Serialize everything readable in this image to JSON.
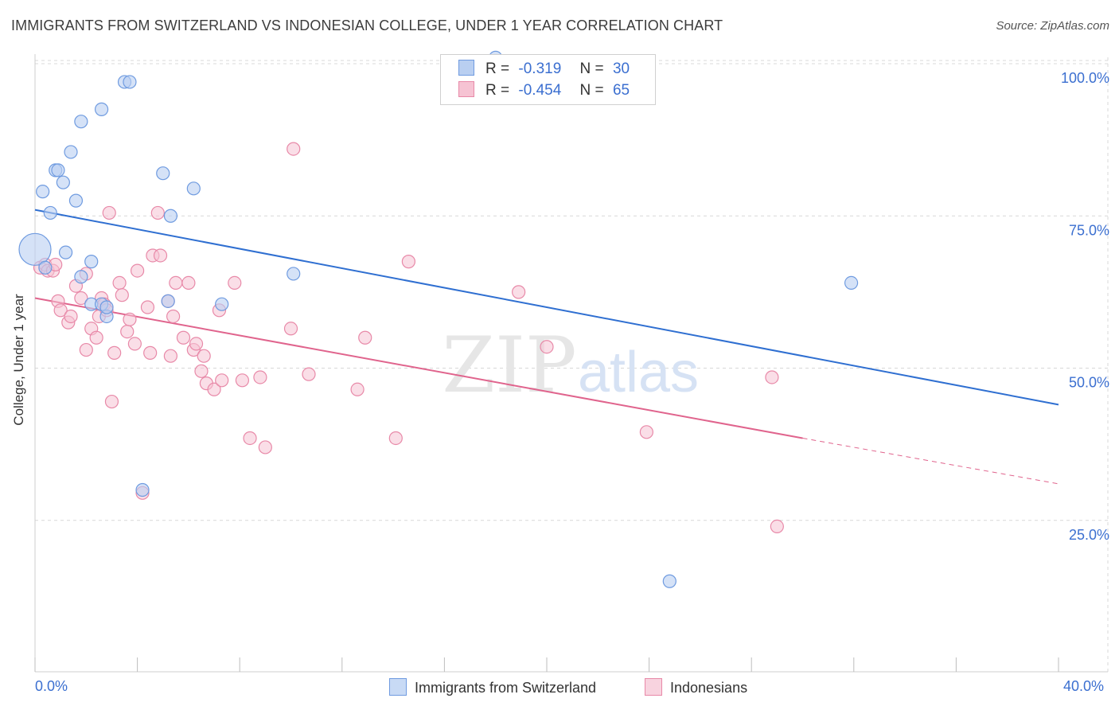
{
  "header": {
    "title": "IMMIGRANTS FROM SWITZERLAND VS INDONESIAN COLLEGE, UNDER 1 YEAR CORRELATION CHART",
    "source": "Source: ZipAtlas.com"
  },
  "stats_legend": {
    "rows": [
      {
        "r_label": "R =",
        "r_value": "-0.319",
        "n_label": "N =",
        "n_value": "30"
      },
      {
        "r_label": "R =",
        "r_value": "-0.454",
        "n_label": "N =",
        "n_value": "65"
      }
    ]
  },
  "watermark": {
    "zip": "ZIP",
    "atlas": "atlas"
  },
  "colors": {
    "blue_fill": "#b9cff1",
    "blue_stroke": "#6f9be0",
    "blue_line": "#2f6fd1",
    "pink_fill": "#f6c3d3",
    "pink_stroke": "#e889a8",
    "pink_line": "#e0648d",
    "grid": "#d8d8d8",
    "tick_text": "#3b6fd0"
  },
  "chart_data": {
    "type": "scatter",
    "title": "IMMIGRANTS FROM SWITZERLAND VS INDONESIAN COLLEGE, UNDER 1 YEAR CORRELATION CHART",
    "xlabel": "",
    "ylabel": "College, Under 1 year",
    "xlim": [
      0,
      40
    ],
    "ylim": [
      0,
      102
    ],
    "x_tick_labels": [
      "0.0%",
      "40.0%"
    ],
    "y_ticks": [
      25,
      50,
      75,
      100
    ],
    "y_tick_labels": [
      "25.0%",
      "50.0%",
      "75.0%",
      "100.0%"
    ],
    "grid": true,
    "series": [
      {
        "name": "Immigrants from Switzerland",
        "color": "#6f9be0",
        "r": -0.319,
        "n": 30,
        "trend": {
          "x0": 0,
          "y0": 76,
          "x1": 40,
          "y1": 44
        },
        "points": [
          [
            0.0,
            69.5,
            "large"
          ],
          [
            0.3,
            79.0
          ],
          [
            0.6,
            75.5
          ],
          [
            0.8,
            82.5
          ],
          [
            0.9,
            82.5
          ],
          [
            1.1,
            80.5
          ],
          [
            1.2,
            69.0
          ],
          [
            1.4,
            85.5
          ],
          [
            1.6,
            77.5
          ],
          [
            1.8,
            65.0
          ],
          [
            1.8,
            90.5
          ],
          [
            2.2,
            67.5
          ],
          [
            2.2,
            60.5
          ],
          [
            2.6,
            60.5
          ],
          [
            2.6,
            92.5
          ],
          [
            2.8,
            58.5
          ],
          [
            3.5,
            97.0
          ],
          [
            3.7,
            97.0
          ],
          [
            4.2,
            30.0
          ],
          [
            5.0,
            82.0
          ],
          [
            5.2,
            61.0
          ],
          [
            5.3,
            75.0
          ],
          [
            6.2,
            79.5
          ],
          [
            7.3,
            60.5
          ],
          [
            10.1,
            65.5
          ],
          [
            18.0,
            101.0
          ],
          [
            24.8,
            15.0
          ],
          [
            31.9,
            64.0
          ],
          [
            0.4,
            66.5
          ],
          [
            2.8,
            60.0
          ]
        ]
      },
      {
        "name": "Indonesians",
        "color": "#e889a8",
        "r": -0.454,
        "n": 65,
        "trend": {
          "x0": 0,
          "y0": 61.5,
          "x1": 30,
          "y1": 38.5
        },
        "trend_extension": {
          "x0": 30,
          "y0": 38.5,
          "x1": 40,
          "y1": 31
        },
        "points": [
          [
            0.2,
            66.5
          ],
          [
            0.4,
            67.0
          ],
          [
            0.5,
            66.0
          ],
          [
            0.7,
            66.0
          ],
          [
            0.8,
            67.0
          ],
          [
            0.9,
            61.0
          ],
          [
            1.0,
            59.5
          ],
          [
            1.3,
            57.5
          ],
          [
            1.4,
            58.5
          ],
          [
            1.6,
            63.5
          ],
          [
            1.8,
            61.5
          ],
          [
            2.0,
            65.5
          ],
          [
            2.0,
            53.0
          ],
          [
            2.2,
            56.5
          ],
          [
            2.4,
            55.0
          ],
          [
            2.5,
            58.5
          ],
          [
            2.6,
            61.5
          ],
          [
            2.7,
            60.5
          ],
          [
            2.8,
            59.5
          ],
          [
            2.9,
            75.5
          ],
          [
            3.0,
            44.5
          ],
          [
            3.1,
            52.5
          ],
          [
            3.3,
            64.0
          ],
          [
            3.4,
            62.0
          ],
          [
            3.6,
            56.0
          ],
          [
            3.7,
            58.0
          ],
          [
            3.9,
            54.0
          ],
          [
            4.0,
            66.0
          ],
          [
            4.2,
            29.5
          ],
          [
            4.4,
            60.0
          ],
          [
            4.5,
            52.5
          ],
          [
            4.6,
            68.5
          ],
          [
            4.8,
            75.5
          ],
          [
            4.9,
            68.5
          ],
          [
            5.2,
            61.0
          ],
          [
            5.3,
            52.0
          ],
          [
            5.4,
            58.5
          ],
          [
            5.5,
            64.0
          ],
          [
            5.8,
            55.0
          ],
          [
            6.0,
            64.0
          ],
          [
            6.2,
            53.0
          ],
          [
            6.3,
            54.0
          ],
          [
            6.5,
            49.5
          ],
          [
            6.6,
            52.0
          ],
          [
            6.7,
            47.5
          ],
          [
            7.0,
            46.5
          ],
          [
            7.2,
            59.5
          ],
          [
            7.3,
            48.0
          ],
          [
            8.1,
            48.0
          ],
          [
            7.8,
            64.0
          ],
          [
            8.4,
            38.5
          ],
          [
            8.8,
            48.5
          ],
          [
            9.0,
            37.0
          ],
          [
            10.0,
            56.5
          ],
          [
            10.1,
            86.0
          ],
          [
            10.7,
            49.0
          ],
          [
            12.6,
            46.5
          ],
          [
            12.9,
            55.0
          ],
          [
            14.1,
            38.5
          ],
          [
            14.6,
            67.5
          ],
          [
            18.9,
            62.5
          ],
          [
            20.0,
            53.5
          ],
          [
            23.9,
            39.5
          ],
          [
            28.8,
            48.5
          ],
          [
            29.0,
            24.0
          ]
        ]
      }
    ]
  },
  "bottom_legend": {
    "items": [
      {
        "label": "Immigrants from Switzerland"
      },
      {
        "label": "Indonesians"
      }
    ]
  }
}
